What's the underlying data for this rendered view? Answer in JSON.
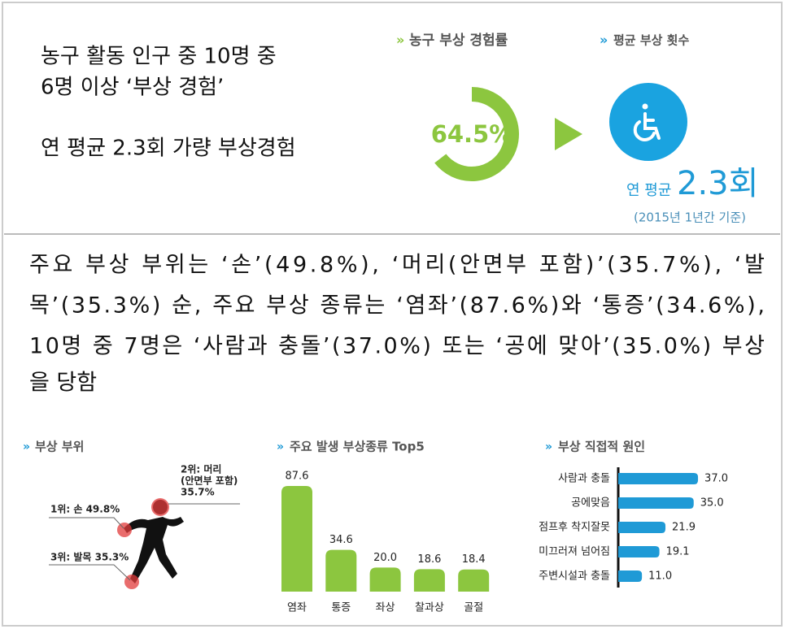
{
  "headline": {
    "lines": [
      "농구 활동 인구 중 10명 중",
      "6명 이상 ‘부상 경험’",
      "연 평균 2.3회 가량 부상경험"
    ]
  },
  "average": {
    "marker": "»",
    "title": "평균 부상 횟수",
    "prefix": "연 평균",
    "value": "2.3회",
    "note": "(2015년 1년간 기준)"
  },
  "summary": {
    "lines": [
      "주요 부상 부위는 ‘손’(49.8%), ‘머리(안면부 포함)’(35.7%), ‘발",
      "목’(35.3%) 순, 주요 부상 종류는 ‘염좌’(87.6%)와 ‘통증’(34.6%),",
      "10명 중 7명은 ‘사람과 충돌’(37.0%) 또는 ‘공에 맞아’(35.0%) 부상",
      "을 당함"
    ]
  },
  "body_parts": {
    "marker": "»",
    "title": "부상 부위",
    "labels": [
      "1위: 손 49.8%",
      "2위: 머리",
      "(안면부 포함)",
      "35.7%",
      "3위: 발목 35.3%"
    ]
  },
  "chart_data": [
    {
      "type": "donut",
      "marker": "»",
      "title": "농구 부상 경험률",
      "values": [
        64.5
      ],
      "value_labels": [
        "64.5%"
      ],
      "color": "#8cc63f"
    },
    {
      "type": "bar",
      "marker": "»",
      "title": "주요 발생 부상종류 Top5",
      "categories": [
        "염좌",
        "통증",
        "좌상",
        "찰과상",
        "골절"
      ],
      "values": [
        87.6,
        34.6,
        20.0,
        18.6,
        18.4
      ],
      "value_labels": [
        "87.6",
        "34.6",
        "20.0",
        "18.6",
        "18.4"
      ],
      "color": "#8cc63f"
    },
    {
      "type": "barh",
      "marker": "»",
      "title": "부상 직접적 원인",
      "categories": [
        "사람과 충돌",
        "공에맞음",
        "점프후 착지잘못",
        "미끄러져 넘어짐",
        "주변시설과 충돌"
      ],
      "values": [
        37.0,
        35.0,
        21.9,
        19.1,
        11.0
      ],
      "value_labels": [
        "37.0",
        "35.0",
        "21.9",
        "19.1",
        "11.0"
      ],
      "color": "#1f9ad6"
    }
  ]
}
